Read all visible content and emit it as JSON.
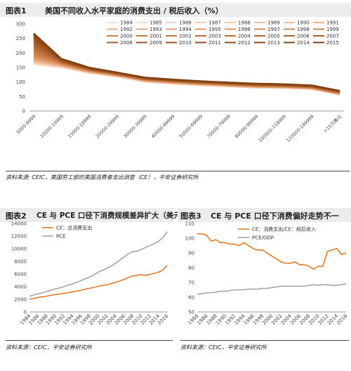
{
  "fig1": {
    "label": "图表1",
    "title": "美国不同收入水平家庭的消费支出 / 税后收入（%）",
    "source": "资料来源: CEIC，美国劳工部的美国消费者支出调查（CE），平安证券研究所",
    "chart_data": {
      "type": "line",
      "ylim": [
        0,
        300
      ],
      "yticks": [
        0,
        50,
        100,
        150,
        200,
        250,
        300
      ],
      "categories": [
        "5000-9999",
        "10000-14999",
        "15000-19999",
        "20000-29999",
        "30000-39999",
        "40000-49999",
        "50000-69999",
        "70000-79999",
        "80000-99999",
        "100000-119999",
        "120000-149999",
        ">15万美元"
      ],
      "series": [
        {
          "name": "1984",
          "color": "#fde1cf",
          "values": [
            160,
            150,
            130,
            118,
            100,
            93,
            88,
            84,
            80,
            79,
            75,
            55
          ]
        },
        {
          "name": "1985",
          "color": "#fcd9c4",
          "values": [
            162,
            150,
            131,
            118,
            101,
            94,
            88,
            84,
            80,
            79,
            75,
            55
          ]
        },
        {
          "name": "1986",
          "color": "#fbd3bb",
          "values": [
            164,
            152,
            132,
            119,
            101,
            94,
            89,
            85,
            81,
            79,
            76,
            56
          ]
        },
        {
          "name": "1987",
          "color": "#facdb1",
          "values": [
            166,
            152,
            132,
            119,
            102,
            95,
            89,
            85,
            81,
            80,
            76,
            56
          ]
        },
        {
          "name": "1988",
          "color": "#f8c6a8",
          "values": [
            168,
            153,
            133,
            120,
            102,
            95,
            90,
            86,
            82,
            80,
            76,
            57
          ]
        },
        {
          "name": "1989",
          "color": "#f6c09f",
          "values": [
            170,
            154,
            133,
            120,
            103,
            96,
            90,
            86,
            82,
            80,
            77,
            57
          ]
        },
        {
          "name": "1990",
          "color": "#f3ba96",
          "values": [
            172,
            155,
            134,
            121,
            103,
            96,
            91,
            86,
            82,
            81,
            77,
            58
          ]
        },
        {
          "name": "1991",
          "color": "#f0b48d",
          "values": [
            174,
            156,
            134,
            121,
            104,
            97,
            91,
            87,
            83,
            81,
            77,
            58
          ]
        },
        {
          "name": "1992",
          "color": "#edae84",
          "values": [
            176,
            157,
            135,
            122,
            104,
            97,
            92,
            87,
            83,
            81,
            78,
            59
          ]
        },
        {
          "name": "1993",
          "color": "#eaa87c",
          "values": [
            178,
            158,
            136,
            122,
            105,
            98,
            92,
            88,
            84,
            82,
            78,
            59
          ]
        },
        {
          "name": "1994",
          "color": "#e6a274",
          "values": [
            180,
            159,
            136,
            123,
            105,
            98,
            93,
            88,
            84,
            82,
            79,
            60
          ]
        },
        {
          "name": "1995",
          "color": "#e29c6c",
          "values": [
            182,
            160,
            137,
            123,
            106,
            99,
            93,
            89,
            85,
            83,
            79,
            60
          ]
        },
        {
          "name": "1996",
          "color": "#de9664",
          "values": [
            185,
            161,
            138,
            124,
            106,
            99,
            94,
            89,
            85,
            83,
            79,
            61
          ]
        },
        {
          "name": "1997",
          "color": "#da905d",
          "values": [
            188,
            162,
            138,
            124,
            107,
            100,
            94,
            90,
            86,
            84,
            80,
            61
          ]
        },
        {
          "name": "1998",
          "color": "#d58a56",
          "values": [
            192,
            163,
            139,
            125,
            107,
            100,
            95,
            90,
            86,
            84,
            80,
            62
          ]
        },
        {
          "name": "1999",
          "color": "#d0844f",
          "values": [
            196,
            164,
            140,
            125,
            108,
            101,
            95,
            91,
            87,
            85,
            81,
            62
          ]
        },
        {
          "name": "2000",
          "color": "#cb7e49",
          "values": [
            200,
            165,
            140,
            126,
            108,
            101,
            96,
            91,
            87,
            85,
            81,
            63
          ]
        },
        {
          "name": "2001",
          "color": "#c67943",
          "values": [
            205,
            166,
            141,
            126,
            109,
            102,
            96,
            92,
            88,
            86,
            82,
            63
          ]
        },
        {
          "name": "2002",
          "color": "#c1743d",
          "values": [
            210,
            167,
            142,
            127,
            109,
            102,
            97,
            92,
            88,
            86,
            82,
            64
          ]
        },
        {
          "name": "2003",
          "color": "#bc6f38",
          "values": [
            215,
            168,
            142,
            127,
            110,
            103,
            97,
            93,
            89,
            87,
            83,
            64
          ]
        },
        {
          "name": "2004",
          "color": "#b76a33",
          "values": [
            220,
            169,
            143,
            128,
            110,
            103,
            98,
            93,
            89,
            87,
            83,
            65
          ]
        },
        {
          "name": "2005",
          "color": "#b2652e",
          "values": [
            225,
            170,
            143,
            128,
            111,
            104,
            98,
            94,
            90,
            88,
            84,
            65
          ]
        },
        {
          "name": "2006",
          "color": "#ad612a",
          "values": [
            230,
            171,
            144,
            129,
            111,
            104,
            99,
            94,
            90,
            88,
            84,
            66
          ]
        },
        {
          "name": "2007",
          "color": "#a85d27",
          "values": [
            235,
            172,
            145,
            129,
            112,
            105,
            99,
            95,
            91,
            89,
            85,
            66
          ]
        },
        {
          "name": "2008",
          "color": "#a35924",
          "values": [
            240,
            173,
            145,
            130,
            112,
            105,
            100,
            95,
            91,
            89,
            85,
            67
          ]
        },
        {
          "name": "2009",
          "color": "#9e5521",
          "values": [
            245,
            174,
            146,
            130,
            113,
            106,
            100,
            96,
            92,
            90,
            86,
            67
          ]
        },
        {
          "name": "2010",
          "color": "#99521e",
          "values": [
            250,
            175,
            147,
            131,
            113,
            106,
            101,
            96,
            92,
            90,
            86,
            68
          ]
        },
        {
          "name": "2011",
          "color": "#944e1b",
          "values": [
            254,
            176,
            147,
            131,
            114,
            107,
            101,
            97,
            93,
            91,
            87,
            68
          ]
        },
        {
          "name": "2012",
          "color": "#8f4b19",
          "values": [
            258,
            177,
            148,
            132,
            114,
            107,
            102,
            97,
            93,
            91,
            87,
            69
          ]
        },
        {
          "name": "2013",
          "color": "#8a4817",
          "values": [
            262,
            178,
            148,
            132,
            115,
            108,
            102,
            98,
            94,
            92,
            88,
            69
          ]
        },
        {
          "name": "2014",
          "color": "#854515",
          "values": [
            265,
            179,
            149,
            133,
            115,
            108,
            103,
            98,
            94,
            92,
            88,
            70
          ]
        },
        {
          "name": "2015",
          "color": "#804213",
          "values": [
            268,
            180,
            150,
            133,
            116,
            109,
            103,
            99,
            95,
            93,
            89,
            70
          ]
        }
      ]
    }
  },
  "fig2": {
    "label": "图表2",
    "title": "CE 与 PCE 口径下消费规模差异扩大（美元）",
    "source": "资料来源：CEIC，平安证券研究所",
    "chart_data": {
      "type": "line",
      "ylim": [
        0,
        14000
      ],
      "yticks": [
        0,
        2000,
        4000,
        6000,
        8000,
        10000,
        12000,
        14000
      ],
      "x": [
        1984,
        1985,
        1986,
        1987,
        1988,
        1989,
        1990,
        1991,
        1992,
        1993,
        1994,
        1995,
        1996,
        1997,
        1998,
        1999,
        2000,
        2001,
        2002,
        2003,
        2004,
        2005,
        2006,
        2007,
        2008,
        2009,
        2010,
        2011,
        2012,
        2013,
        2014,
        2015,
        2016
      ],
      "xticks": [
        1984,
        1986,
        1988,
        1990,
        1992,
        1994,
        1996,
        1998,
        2000,
        2002,
        2004,
        2006,
        2008,
        2010,
        2012,
        2014,
        2016
      ],
      "series": [
        {
          "name": "CE：总消费支出",
          "color": "#e07b2a",
          "values": [
            2000,
            2150,
            2300,
            2400,
            2500,
            2650,
            2750,
            2850,
            2950,
            3050,
            3200,
            3300,
            3450,
            3600,
            3750,
            3900,
            4050,
            4200,
            4300,
            4500,
            4650,
            4900,
            5150,
            5450,
            5700,
            5800,
            5900,
            5800,
            5950,
            6100,
            6300,
            6600,
            7400
          ]
        },
        {
          "name": "PCE",
          "color": "#a6a6a6",
          "values": [
            2500,
            2700,
            2850,
            3050,
            3250,
            3450,
            3650,
            3800,
            4000,
            4250,
            4450,
            4700,
            4950,
            5250,
            5550,
            5900,
            6300,
            6600,
            6900,
            7250,
            7700,
            8200,
            8700,
            9200,
            9550,
            9600,
            9900,
            10200,
            10500,
            10800,
            11200,
            11700,
            12700
          ]
        }
      ]
    }
  },
  "fig3": {
    "label": "图表3",
    "title": "CE 与 PCE 口径下消费偏好走势不一",
    "source": "资料来源：CEIC，平安证券研究所",
    "chart_data": {
      "type": "line",
      "ylim": [
        50,
        110
      ],
      "yticks": [
        50,
        60,
        70,
        80,
        90,
        100,
        110
      ],
      "x": [
        1984,
        1985,
        1986,
        1987,
        1988,
        1989,
        1990,
        1991,
        1992,
        1993,
        1994,
        1995,
        1996,
        1997,
        1998,
        1999,
        2000,
        2001,
        2002,
        2003,
        2004,
        2005,
        2006,
        2007,
        2008,
        2009,
        2010,
        2011,
        2012,
        2013,
        2014,
        2015,
        2016
      ],
      "xticks": [
        1984,
        1986,
        1988,
        1990,
        1992,
        1994,
        1996,
        1998,
        2000,
        2002,
        2004,
        2006,
        2008,
        2010,
        2012,
        2014,
        2016
      ],
      "series": [
        {
          "name": "CE：消费支出/CE：税后收入",
          "color": "#e07b2a",
          "values": [
            103,
            103,
            102,
            98,
            99,
            97,
            97,
            96,
            96,
            95,
            97,
            95,
            93,
            92,
            92,
            90,
            88,
            86,
            84,
            83,
            83,
            84,
            82,
            82,
            81,
            79,
            81,
            81,
            91,
            92,
            93,
            89,
            90
          ]
        },
        {
          "name": "PCE/GDP",
          "color": "#a6a6a6",
          "values": [
            62,
            62.5,
            63,
            63,
            63.5,
            64,
            64,
            64.5,
            65,
            65,
            65,
            65.5,
            65.5,
            65.5,
            66,
            66,
            66.5,
            67,
            67.5,
            67.5,
            67.5,
            67.5,
            67.5,
            67.5,
            68,
            68.5,
            68,
            68.5,
            68.5,
            68,
            68,
            68.5,
            69
          ]
        }
      ]
    }
  }
}
